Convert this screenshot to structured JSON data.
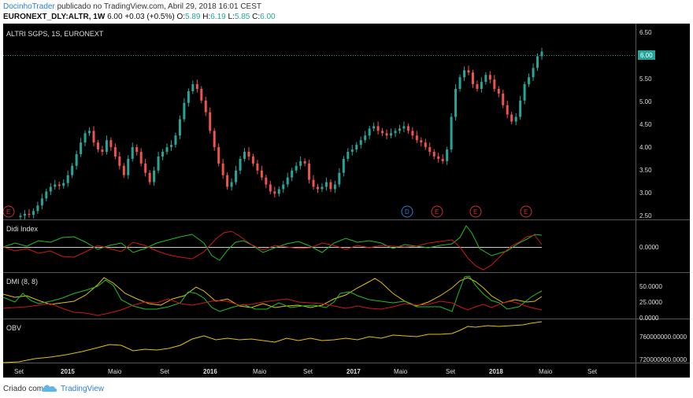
{
  "header": {
    "user": "DocinhoTrader",
    "published": "publicado no TradingView.com, Abril 29, 2018 16:01 CEST",
    "symbol": "EURONEXT_DLY:ALTR, 1W",
    "last": "6.00",
    "change": "+0.03 (+0.5%)",
    "o_label": "O:",
    "o_value": "5.89",
    "h_label": "H:",
    "h_value": "6.19",
    "l_label": "L:",
    "l_value": "5.85",
    "c_label": "C:",
    "c_value": "6.00"
  },
  "footer": {
    "created_with": "Criado com",
    "brand": "TradingView"
  },
  "colors": {
    "background": "#000000",
    "up": "#26a69a",
    "down": "#ef5350",
    "didi_green": "#20c020",
    "didi_red": "#d01818",
    "dmi_yellow": "#e6c200",
    "obv_yellow": "#e6c200",
    "price_tag": "#26a69a"
  },
  "chart_data": [
    {
      "type": "candlestick",
      "title": "ALTRI SGPS, 1S, EURONEXT",
      "ylim": [
        2.4,
        6.6
      ],
      "y_ticks": [
        "6.50",
        "5.50",
        "5.00",
        "4.50",
        "4.00",
        "3.50",
        "3.00",
        "2.50"
      ],
      "last_price_tag": "6.00",
      "x_tick_labels": [
        "Set",
        "2015",
        "Maio",
        "Set",
        "2016",
        "Maio",
        "Set",
        "2017",
        "Maio",
        "Set",
        "2018",
        "Maio",
        "Set"
      ],
      "markers": [
        "E",
        "D",
        "E",
        "E",
        "E"
      ],
      "approx_weekly_closes": [
        2.48,
        2.52,
        2.5,
        2.58,
        2.7,
        2.85,
        3.0,
        3.1,
        3.15,
        3.12,
        3.18,
        3.35,
        3.55,
        3.8,
        4.05,
        4.25,
        4.3,
        4.05,
        3.9,
        3.85,
        4.1,
        3.95,
        3.75,
        3.55,
        3.35,
        3.7,
        3.95,
        3.85,
        3.6,
        3.4,
        3.2,
        3.45,
        3.75,
        3.85,
        3.95,
        4.0,
        4.2,
        4.55,
        4.9,
        5.15,
        5.3,
        5.2,
        4.95,
        4.7,
        4.3,
        3.95,
        3.6,
        3.35,
        3.1,
        3.2,
        3.45,
        3.7,
        3.85,
        3.75,
        3.6,
        3.45,
        3.3,
        3.15,
        3.0,
        2.95,
        3.05,
        3.15,
        3.3,
        3.45,
        3.55,
        3.65,
        3.6,
        3.25,
        3.1,
        3.05,
        3.1,
        3.2,
        3.05,
        3.15,
        3.4,
        3.7,
        3.85,
        3.9,
        4.0,
        4.1,
        4.2,
        4.35,
        4.4,
        4.3,
        4.25,
        4.2,
        4.25,
        4.3,
        4.35,
        4.4,
        4.3,
        4.2,
        4.1,
        4.05,
        3.95,
        3.85,
        3.75,
        3.7,
        3.65,
        3.9,
        4.6,
        5.2,
        5.45,
        5.6,
        5.55,
        5.3,
        5.2,
        5.35,
        5.5,
        5.4,
        5.2,
        5.1,
        4.85,
        4.65,
        4.5,
        4.6,
        4.95,
        5.3,
        5.45,
        5.65,
        5.9,
        6.0
      ]
    },
    {
      "type": "line",
      "title": "Didi Index",
      "y_ticks": [
        "0.0000"
      ]
    },
    {
      "type": "line",
      "title": "DMI (8, 8)",
      "y_ticks": [
        "50.0000",
        "25.0000",
        "0.0000"
      ]
    },
    {
      "type": "line",
      "title": "OBV",
      "y_ticks": [
        "760000000.0000",
        "720000000.0000"
      ]
    }
  ]
}
